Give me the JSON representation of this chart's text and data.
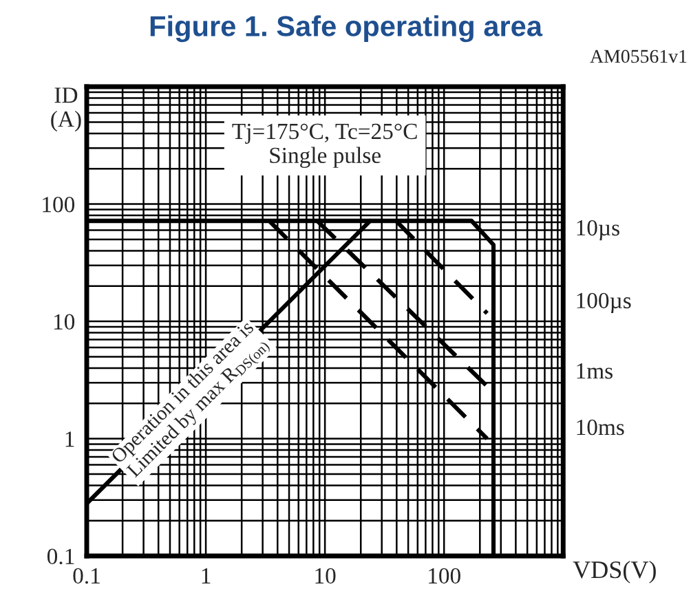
{
  "chart_data": {
    "type": "line",
    "title": "Figure 1. Safe operating area",
    "xlabel": "VDS(V)",
    "ylabel": "ID\n(A)",
    "log": "xy",
    "xlim": [
      0.1,
      1000
    ],
    "ylim": [
      0.1,
      1000
    ],
    "xticks": [
      0.1,
      1,
      10,
      100,
      {
        "value": 1000,
        "label": null
      }
    ],
    "yticks": [
      0.1,
      1,
      10,
      100,
      {
        "value": 1000,
        "label": null
      }
    ],
    "grid": true,
    "legend": false,
    "series": [
      {
        "color": "#000000",
        "line_style": "solid",
        "x": [
          0.1,
          24
        ],
        "values": [
          0.28,
          72
        ]
      },
      {
        "color": "#000000",
        "line_style": "solid",
        "x": [
          0.1,
          170,
          260,
          260
        ],
        "values": [
          72,
          72,
          45,
          0.1
        ]
      },
      {
        "color": "#000000",
        "line_style": "dashed",
        "x": [
          39.5,
          230
        ],
        "values": [
          72,
          11.7
        ]
      },
      {
        "color": "#000000",
        "line_style": "dashed",
        "x": [
          8.6,
          230
        ],
        "values": [
          72,
          2.8
        ]
      },
      {
        "color": "#000000",
        "line_style": "dashed",
        "x": [
          3.4,
          230
        ],
        "values": [
          72,
          1.0
        ]
      }
    ],
    "annotations": [
      "AM05561v1",
      "Tj=175°C, Tc=25°C\nSingle pulse",
      "Operation in this area is\nLimited by max R$_{DS(on)}$",
      "10µs",
      "100µs",
      "1ms",
      "10ms"
    ]
  }
}
